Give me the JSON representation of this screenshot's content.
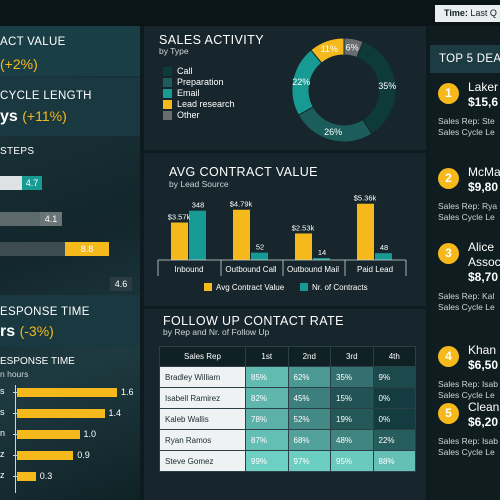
{
  "time_filter": {
    "label": "Time:",
    "value": "Last Q"
  },
  "left": {
    "contract_value": {
      "label": "ACT VALUE",
      "change": "(+2%)"
    },
    "cycle_length": {
      "label": "CYCLE LENGTH",
      "value": "ys",
      "change": "(+11%)"
    },
    "steps": {
      "label": "STEPS",
      "values": [
        "4.7",
        "4.1",
        "8.8",
        "4.6"
      ],
      "levels": [
        0.47,
        0.41,
        0.88,
        0.46
      ]
    },
    "response_time": {
      "label": "ESPONSE TIME",
      "value": "rs",
      "change": "(-3%)"
    },
    "response_chart": {
      "title": "ESPONSE TIME",
      "subtitle": "n hours",
      "rows": [
        {
          "tick": "s",
          "value": 1.6,
          "label": "1.6"
        },
        {
          "tick": "s",
          "value": 1.4,
          "label": "1.4"
        },
        {
          "tick": "n",
          "value": 1.0,
          "label": "1.0"
        },
        {
          "tick": "z",
          "value": 0.9,
          "label": "0.9"
        },
        {
          "tick": "z",
          "value": 0.3,
          "label": "0.3"
        }
      ]
    }
  },
  "sales_activity": {
    "title": "SALES ACTIVITY",
    "subtitle": "by Type",
    "legend": [
      {
        "label": "Call",
        "color": "#0e3a3a"
      },
      {
        "label": "Preparation",
        "color": "#1c5c5a"
      },
      {
        "label": "Email",
        "color": "#179a93"
      },
      {
        "label": "Lead research",
        "color": "#f6b91c"
      },
      {
        "label": "Other",
        "color": "#6a6d70"
      }
    ]
  },
  "avg_contract": {
    "title": "AVG CONTRACT VALUE",
    "subtitle": "by Lead Source",
    "legend": [
      "Avg Contract Value",
      "Nr. of Contracts"
    ]
  },
  "follow_up": {
    "title": "FOLLOW UP CONTACT RATE",
    "subtitle": "by Rep and Nr. of Follow Up",
    "headers": [
      "Sales Rep",
      "1st",
      "2nd",
      "3rd",
      "4th"
    ],
    "rows": [
      {
        "rep": "Bradley William",
        "cells": [
          "85%",
          "62%",
          "35%",
          "9%"
        ],
        "levels": [
          0.85,
          0.62,
          0.35,
          0.09
        ]
      },
      {
        "rep": "Isabell Ramirez",
        "cells": [
          "82%",
          "45%",
          "15%",
          "0%"
        ],
        "levels": [
          0.82,
          0.45,
          0.15,
          0.0
        ]
      },
      {
        "rep": "Kaleb Wallis",
        "cells": [
          "78%",
          "52%",
          "19%",
          "0%"
        ],
        "levels": [
          0.78,
          0.52,
          0.19,
          0.0
        ]
      },
      {
        "rep": "Ryan Ramos",
        "cells": [
          "87%",
          "68%",
          "48%",
          "22%"
        ],
        "levels": [
          0.87,
          0.68,
          0.48,
          0.22
        ]
      },
      {
        "rep": "Steve Gomez",
        "cells": [
          "99%",
          "97%",
          "95%",
          "88%"
        ],
        "levels": [
          0.99,
          0.97,
          0.95,
          0.88
        ]
      }
    ]
  },
  "top5": {
    "title": "TOP 5 DEA",
    "deals": [
      {
        "rank": "1",
        "name": "Laker",
        "value": "$15,6",
        "meta1": "Sales Rep: Ste",
        "meta2": "Sales Cycle Le"
      },
      {
        "rank": "2",
        "name": "McMa",
        "value": "$9,80",
        "meta1": "Sales Rep: Rya",
        "meta2": "Sales Cycle Le"
      },
      {
        "rank": "3",
        "name": "Alice",
        "name2": "Assoc",
        "value": "$8,70",
        "meta1": "Sales Rep: Kal",
        "meta2": "Sales Cycle Le"
      },
      {
        "rank": "4",
        "name": "Khan",
        "value": "$6,50",
        "meta1": "Sales Rep: Isab",
        "meta2": "Sales Cycle Le"
      },
      {
        "rank": "5",
        "name": "Clean",
        "value": "$6,20",
        "meta1": "Sales Rep: Isab",
        "meta2": "Sales Cycle Le"
      }
    ]
  },
  "chart_data": [
    {
      "type": "pie",
      "title": "SALES ACTIVITY",
      "subtitle": "by Type",
      "categories": [
        "Call",
        "Preparation",
        "Email",
        "Lead research",
        "Other"
      ],
      "values": [
        35,
        26,
        22,
        11,
        6
      ],
      "labels": [
        "35%",
        "26%",
        "22%",
        "11%",
        "6%"
      ],
      "colors": [
        "#0e3a3a",
        "#1c5c5a",
        "#179a93",
        "#f6b91c",
        "#6a6d70"
      ]
    },
    {
      "type": "bar",
      "title": "AVG CONTRACT VALUE",
      "subtitle": "by Lead Source",
      "categories": [
        "Inbound",
        "Outbound Call",
        "Outbound Mail",
        "Paid Lead"
      ],
      "series": [
        {
          "name": "Avg Contract Value",
          "values": [
            3.57,
            4.79,
            2.53,
            5.36
          ],
          "labels": [
            "$3.57k",
            "$4.79k",
            "$2.53k",
            "$5.36k"
          ],
          "color": "#f6b91c"
        },
        {
          "name": "Nr. of Contracts",
          "values": [
            348,
            52,
            14,
            48
          ],
          "labels": [
            "348",
            "52",
            "14",
            "48"
          ],
          "color": "#179a93"
        }
      ]
    },
    {
      "type": "bar",
      "title": "ESPONSE TIME",
      "subtitle": "n hours",
      "categories": [
        "s",
        "s",
        "n",
        "z",
        "z"
      ],
      "values": [
        1.6,
        1.4,
        1.0,
        0.9,
        0.3
      ]
    }
  ]
}
